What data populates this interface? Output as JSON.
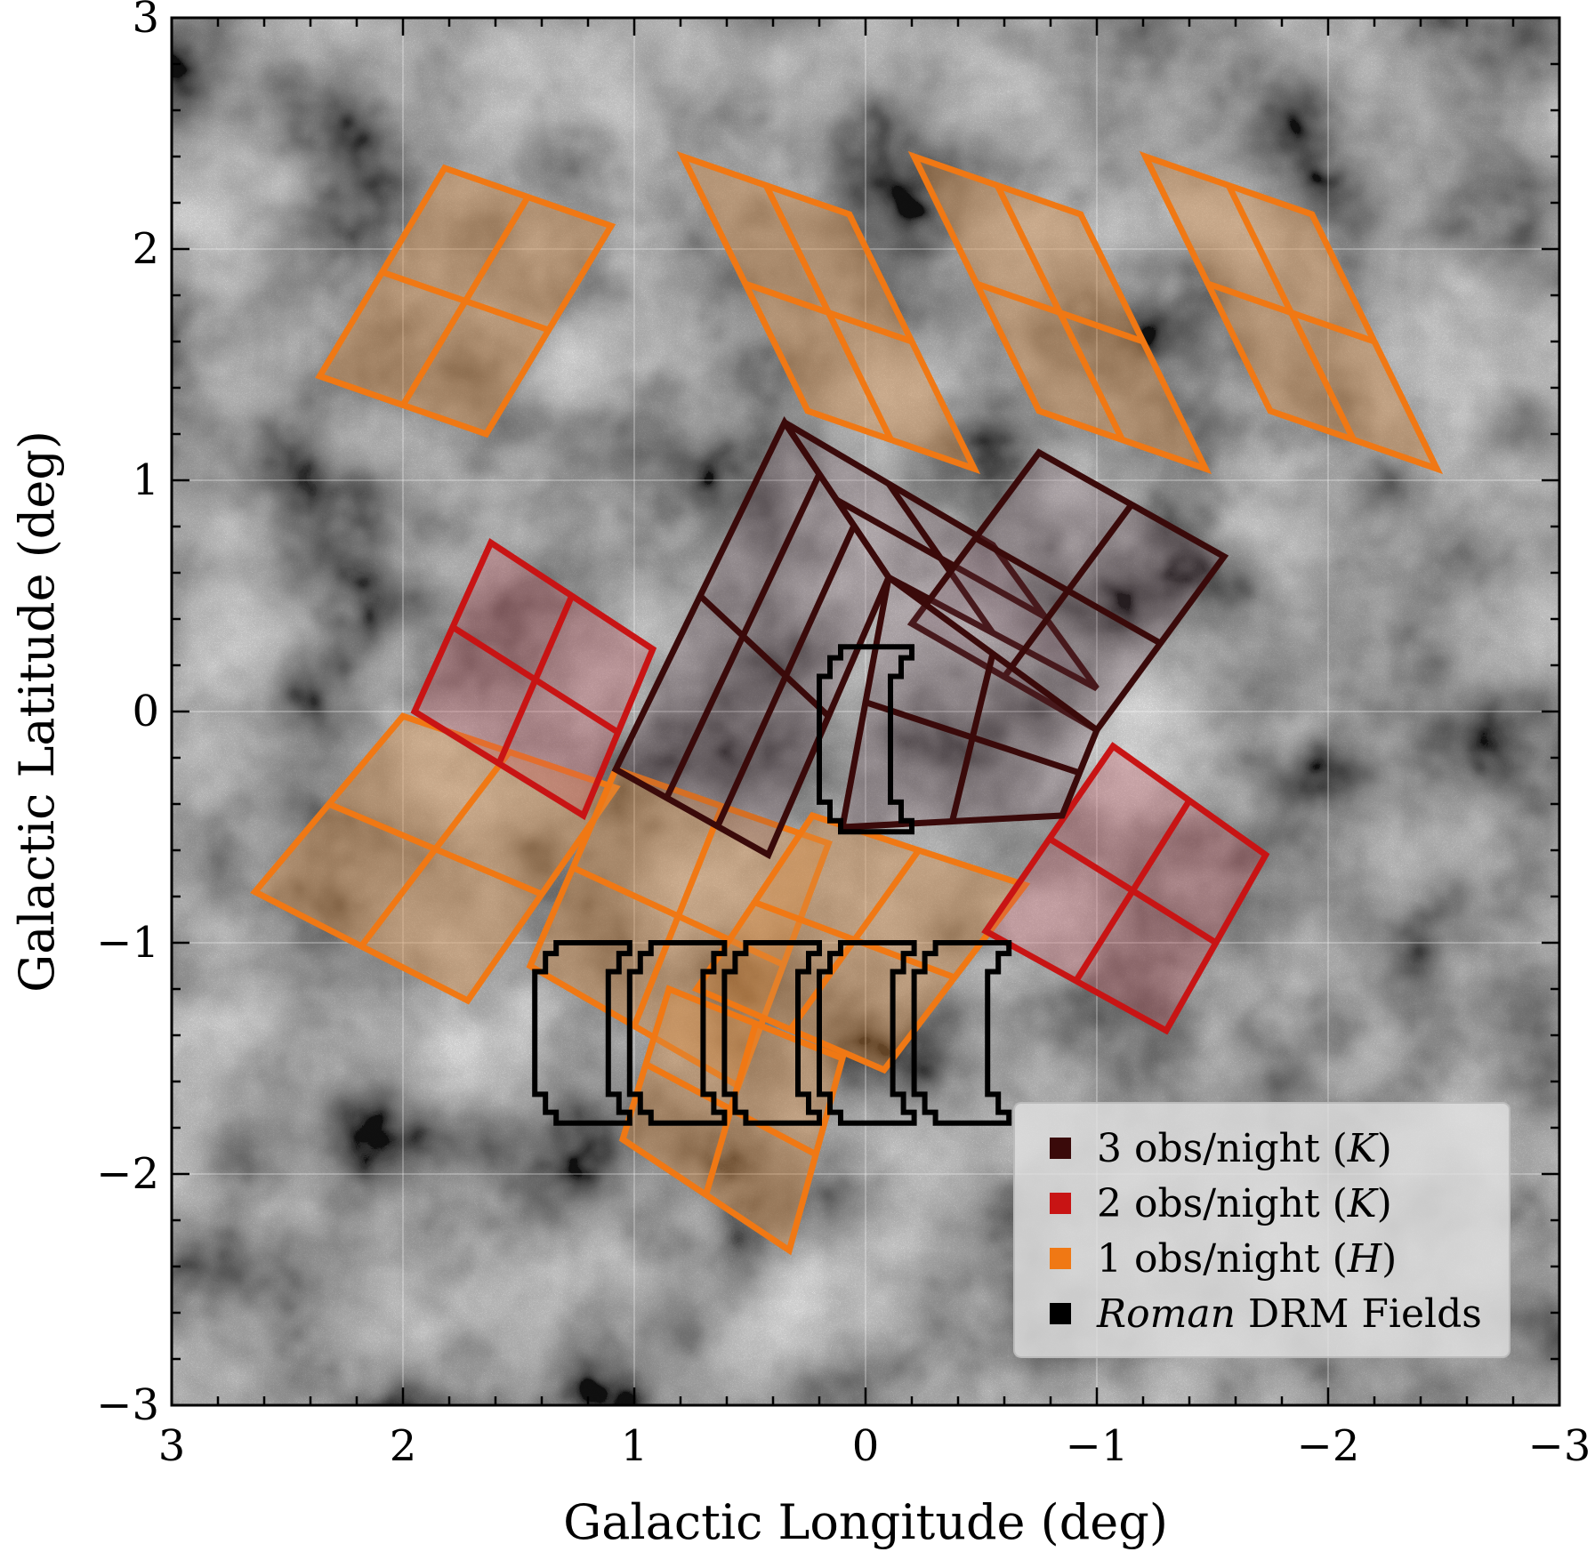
{
  "chart_data": {
    "type": "sky-map",
    "xlabel": "Galactic Longitude (deg)",
    "ylabel": "Galactic Latitude (deg)",
    "xlim": [
      3,
      -3
    ],
    "ylim": [
      -3,
      3
    ],
    "x_ticks": [
      3,
      2,
      1,
      0,
      -1,
      -2,
      -3
    ],
    "y_ticks": [
      -3,
      -2,
      -1,
      0,
      1,
      2,
      3
    ],
    "x_tick_labels": [
      "3",
      "2",
      "1",
      "0",
      "−1",
      "−2",
      "−3"
    ],
    "y_tick_labels": [
      "−3",
      "−2",
      "−1",
      "0",
      "1",
      "2",
      "3"
    ],
    "grid": true,
    "background": "grayscale extinction map",
    "legend": {
      "placement": "lower-right",
      "entries": [
        {
          "label": "3 obs/night (",
          "italic": "K",
          "suffix": ")",
          "color": "#3a0a0a"
        },
        {
          "label": "2 obs/night (",
          "italic": "K",
          "suffix": ")",
          "color": "#c81414"
        },
        {
          "label": "1 obs/night (",
          "italic": "H",
          "suffix": ")",
          "color": "#f07814"
        },
        {
          "label": " DRM Fields",
          "italic": "Roman",
          "prefix_italic": true,
          "color": "#000000"
        }
      ]
    },
    "series": [
      {
        "name": "1 obs/night (H)",
        "color": "#f07814",
        "fill": "rgba(215,140,70,0.42)",
        "tiles": [
          {
            "corners": [
              [
                1.82,
                2.35
              ],
              [
                1.1,
                2.1
              ],
              [
                1.64,
                1.2
              ],
              [
                2.36,
                1.45
              ]
            ],
            "grid": [
              2,
              2
            ]
          },
          {
            "corners": [
              [
                0.79,
                2.4
              ],
              [
                0.07,
                2.15
              ],
              [
                -0.47,
                1.05
              ],
              [
                0.25,
                1.3
              ]
            ],
            "grid": [
              2,
              2
            ]
          },
          {
            "corners": [
              [
                -0.21,
                2.4
              ],
              [
                -0.93,
                2.15
              ],
              [
                -1.47,
                1.05
              ],
              [
                -0.75,
                1.3
              ]
            ],
            "grid": [
              2,
              2
            ]
          },
          {
            "corners": [
              [
                -1.21,
                2.4
              ],
              [
                -1.93,
                2.15
              ],
              [
                -2.47,
                1.05
              ],
              [
                -1.75,
                1.3
              ]
            ],
            "grid": [
              2,
              2
            ]
          },
          {
            "corners": [
              [
                2.0,
                -0.02
              ],
              [
                1.08,
                -0.33
              ],
              [
                1.72,
                -1.25
              ],
              [
                2.64,
                -0.78
              ]
            ],
            "grid": [
              2,
              2
            ]
          },
          {
            "corners": [
              [
                1.08,
                -0.25
              ],
              [
                0.16,
                -0.57
              ],
              [
                0.55,
                -1.62
              ],
              [
                1.45,
                -1.1
              ]
            ],
            "grid": [
              2,
              2
            ]
          },
          {
            "corners": [
              [
                0.23,
                -0.45
              ],
              [
                -0.69,
                -0.75
              ],
              [
                -0.08,
                -1.55
              ],
              [
                0.73,
                -1.2
              ]
            ],
            "grid": [
              2,
              2
            ]
          },
          {
            "corners": [
              [
                0.85,
                -1.2
              ],
              [
                0.1,
                -1.5
              ],
              [
                0.33,
                -2.33
              ],
              [
                1.05,
                -1.85
              ]
            ],
            "grid": [
              2,
              2
            ]
          }
        ]
      },
      {
        "name": "2 obs/night (K)",
        "color": "#c81414",
        "fill": "rgba(200,90,100,0.33)",
        "tiles": [
          {
            "corners": [
              [
                1.62,
                0.73
              ],
              [
                0.92,
                0.27
              ],
              [
                1.22,
                -0.45
              ],
              [
                1.95,
                0.0
              ]
            ],
            "grid": [
              2,
              2
            ]
          },
          {
            "corners": [
              [
                -1.07,
                -0.15
              ],
              [
                -1.73,
                -0.62
              ],
              [
                -1.3,
                -1.38
              ],
              [
                -0.52,
                -0.95
              ]
            ],
            "grid": [
              2,
              2
            ]
          }
        ]
      },
      {
        "name": "3 obs/night (K)",
        "color": "#3a0a0a",
        "fill": "rgba(120,80,95,0.22)",
        "tiles": [
          {
            "corners": [
              [
                0.35,
                1.25
              ],
              [
                -0.55,
                0.72
              ],
              [
                -1.0,
                0.1
              ],
              [
                -0.1,
                0.58
              ]
            ],
            "grid": [
              2,
              2
            ]
          },
          {
            "corners": [
              [
                -0.75,
                1.12
              ],
              [
                -1.55,
                0.67
              ],
              [
                -1.0,
                -0.08
              ],
              [
                -0.2,
                0.38
              ]
            ],
            "grid": [
              2,
              2
            ]
          },
          {
            "corners": [
              [
                0.35,
                1.25
              ],
              [
                -0.1,
                0.58
              ],
              [
                0.42,
                -0.62
              ],
              [
                1.08,
                -0.25
              ]
            ],
            "grid": [
              3,
              2
            ]
          },
          {
            "corners": [
              [
                -0.1,
                0.58
              ],
              [
                -1.0,
                -0.08
              ],
              [
                -0.85,
                -0.45
              ],
              [
                0.1,
                -0.5
              ]
            ],
            "grid": [
              2,
              2
            ]
          }
        ]
      }
    ],
    "drm_fields": {
      "name": "Roman DRM Fields",
      "color": "#000000",
      "center_field": {
        "l": [
          0.2,
          -0.2
        ],
        "b": [
          0.28,
          -0.52
        ]
      },
      "row_fields": {
        "l_edges": [
          1.43,
          1.02,
          0.61,
          0.2,
          -0.21,
          -0.62
        ],
        "b": [
          -1.0,
          -1.78
        ]
      }
    }
  }
}
